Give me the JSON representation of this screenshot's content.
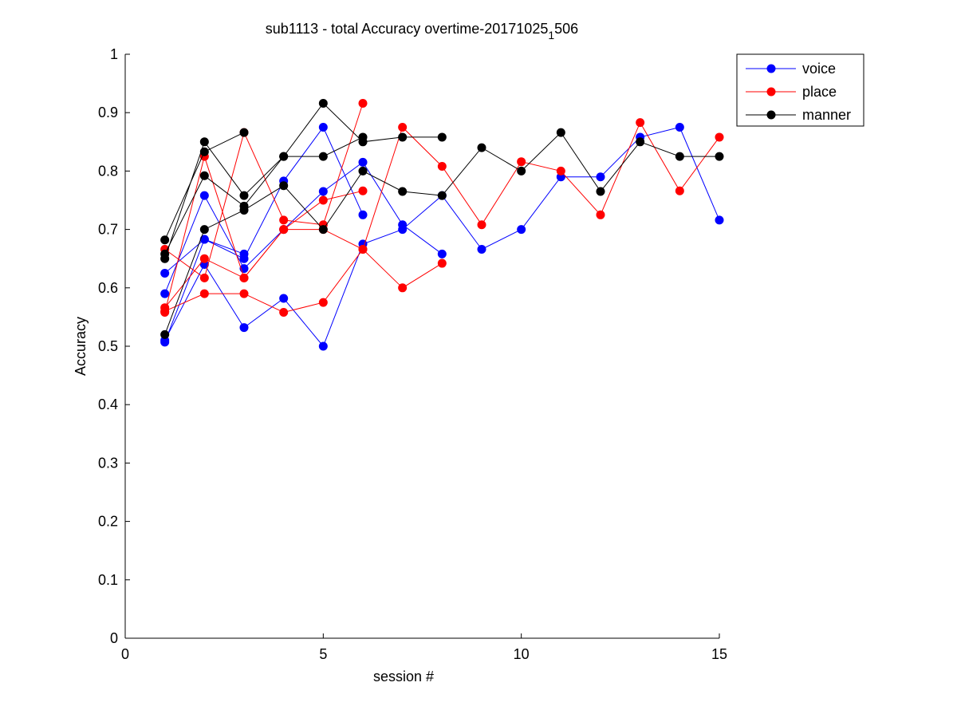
{
  "chart_data": {
    "type": "line",
    "title_main": "sub1113 - total Accuracy overtime-20171025",
    "title_sub": "1",
    "title_tail": "506",
    "xlabel": "session #",
    "ylabel": "Accuracy",
    "xlim": [
      0,
      15
    ],
    "ylim": [
      0,
      1
    ],
    "xticks": [
      0,
      5,
      10,
      15
    ],
    "xtick_labels": [
      "0",
      "5",
      "10",
      "15"
    ],
    "yticks": [
      0,
      0.1,
      0.2,
      0.3,
      0.4,
      0.5,
      0.6,
      0.7,
      0.8,
      0.9,
      1
    ],
    "ytick_labels": [
      "0",
      "0.1",
      "0.2",
      "0.3",
      "0.4",
      "0.5",
      "0.6",
      "0.7",
      "0.8",
      "0.9",
      "1"
    ],
    "grid": false,
    "legend_position": "top-right outside",
    "legend": [
      {
        "label": "voice",
        "color": "#0000ff"
      },
      {
        "label": "place",
        "color": "#ff0000"
      },
      {
        "label": "manner",
        "color": "#000000"
      }
    ],
    "series": [
      {
        "group": "voice",
        "color": "#0000ff",
        "x": [
          1,
          2,
          3,
          4,
          5,
          6,
          7,
          8,
          9,
          10,
          11,
          12,
          13,
          14,
          15
        ],
        "y": [
          0.51,
          0.64,
          0.532,
          0.582,
          0.5,
          0.675,
          0.7,
          0.758,
          0.666,
          0.7,
          0.79,
          0.79,
          0.858,
          0.875,
          0.716
        ]
      },
      {
        "group": "voice",
        "color": "#0000ff",
        "x": [
          1,
          2,
          3,
          4,
          5,
          6
        ],
        "y": [
          0.507,
          0.683,
          0.65,
          0.783,
          0.875,
          0.725
        ]
      },
      {
        "group": "voice",
        "color": "#0000ff",
        "x": [
          1,
          2,
          3,
          4,
          5,
          6,
          7,
          8
        ],
        "y": [
          0.59,
          0.758,
          0.633,
          0.7,
          0.765,
          0.815,
          0.708,
          0.658
        ]
      },
      {
        "group": "voice",
        "color": "#0000ff",
        "x": [
          1,
          2,
          3
        ],
        "y": [
          0.625,
          0.683,
          0.658
        ]
      },
      {
        "group": "place",
        "color": "#ff0000",
        "x": [
          1,
          2,
          3,
          4,
          5,
          6,
          7,
          8,
          9,
          10,
          11,
          12,
          13,
          14,
          15
        ],
        "y": [
          0.56,
          0.59,
          0.59,
          0.558,
          0.575,
          0.666,
          0.875,
          0.808,
          0.708,
          0.816,
          0.8,
          0.725,
          0.883,
          0.766,
          0.858
        ]
      },
      {
        "group": "place",
        "color": "#ff0000",
        "x": [
          1,
          2,
          3,
          4,
          5,
          6
        ],
        "y": [
          0.666,
          0.617,
          0.866,
          0.716,
          0.708,
          0.916
        ]
      },
      {
        "group": "place",
        "color": "#ff0000",
        "x": [
          1,
          2,
          3,
          4,
          5,
          6
        ],
        "y": [
          0.558,
          0.825,
          0.617,
          0.7,
          0.75,
          0.766
        ]
      },
      {
        "group": "place",
        "color": "#ff0000",
        "x": [
          1,
          2,
          3,
          4,
          5,
          6,
          7,
          8
        ],
        "y": [
          0.566,
          0.65,
          0.617,
          0.7,
          0.7,
          0.666,
          0.6,
          0.642
        ]
      },
      {
        "group": "manner",
        "color": "#000000",
        "x": [
          1,
          2,
          3,
          4,
          5,
          6,
          7,
          8,
          9,
          10,
          11,
          12,
          13,
          14,
          15
        ],
        "y": [
          0.52,
          0.7,
          0.733,
          0.775,
          0.7,
          0.8,
          0.765,
          0.758,
          0.84,
          0.8,
          0.866,
          0.765,
          0.85,
          0.825,
          0.825
        ]
      },
      {
        "group": "manner",
        "color": "#000000",
        "x": [
          1,
          2,
          3,
          4,
          5,
          6,
          7,
          8
        ],
        "y": [
          0.65,
          0.85,
          0.758,
          0.825,
          0.916,
          0.85,
          0.858,
          0.858
        ]
      },
      {
        "group": "manner",
        "color": "#000000",
        "x": [
          1,
          2,
          3,
          4,
          5,
          6
        ],
        "y": [
          0.658,
          0.792,
          0.74,
          0.825,
          0.825,
          0.858
        ]
      },
      {
        "group": "manner",
        "color": "#000000",
        "x": [
          1,
          2,
          3
        ],
        "y": [
          0.682,
          0.833,
          0.866
        ]
      }
    ]
  }
}
